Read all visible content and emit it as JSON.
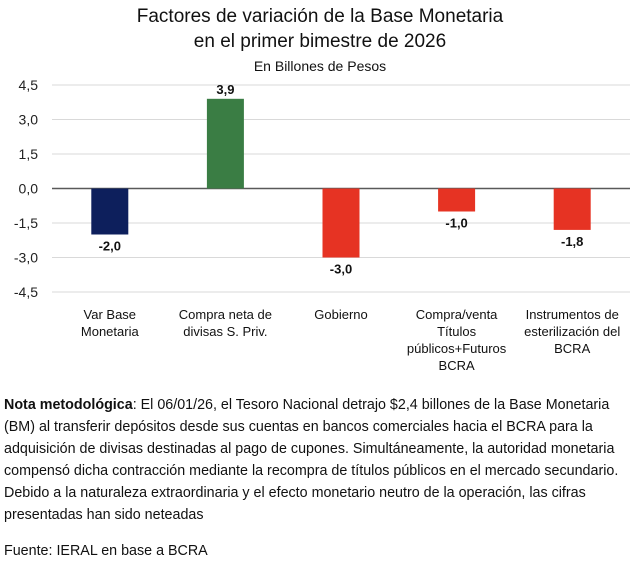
{
  "chart_data": {
    "type": "bar",
    "title": "Factores de variación de la Base Monetaria",
    "title_line2": "en el primer bimestre de 2026",
    "subtitle": "En Billones de Pesos",
    "xlabel": "",
    "ylabel": "",
    "ylim": [
      -4.5,
      4.5
    ],
    "yticks": [
      4.5,
      3.0,
      1.5,
      0.0,
      -1.5,
      -3.0,
      -4.5
    ],
    "ytick_labels": [
      "4,5",
      "3,0",
      "1,5",
      "0,0",
      "-1,5",
      "-3,0",
      "-4,5"
    ],
    "grid": true,
    "legend": "none",
    "categories": [
      [
        "Var Base",
        "Monetaria"
      ],
      [
        "Compra neta de",
        "divisas S. Priv."
      ],
      [
        "Gobierno"
      ],
      [
        "Compra/venta",
        "Títulos",
        "públicos+Futuros",
        "BCRA"
      ],
      [
        "Instrumentos de",
        "esterilización del",
        "BCRA"
      ]
    ],
    "values": [
      -2.0,
      3.9,
      -3.0,
      -1.0,
      -1.8
    ],
    "data_labels": [
      "-2,0",
      "3,9",
      "-3,0",
      "-1,0",
      "-1,8"
    ],
    "colors": [
      "#0d1f5c",
      "#3a7d44",
      "#e63323",
      "#e63323",
      "#e63323"
    ]
  },
  "note": {
    "label": "Nota metodológica",
    "text": ": El 06/01/26, el Tesoro Nacional detrajo $2,4 billones de la Base Monetaria (BM) al transferir depósitos desde sus cuentas en bancos comerciales hacia el BCRA para la adquisición de divisas destinadas al pago de cupones. Simultáneamente, la autoridad monetaria compensó dicha contracción mediante la recompra de títulos públicos en el mercado secundario. Debido a la naturaleza extraordinaria y el efecto monetario neutro de la operación, las cifras presentadas han sido neteadas"
  },
  "source": "Fuente: IERAL en base a BCRA",
  "style": {
    "gridline_color": "#d9d9d9",
    "zero_line_color": "#595959"
  }
}
